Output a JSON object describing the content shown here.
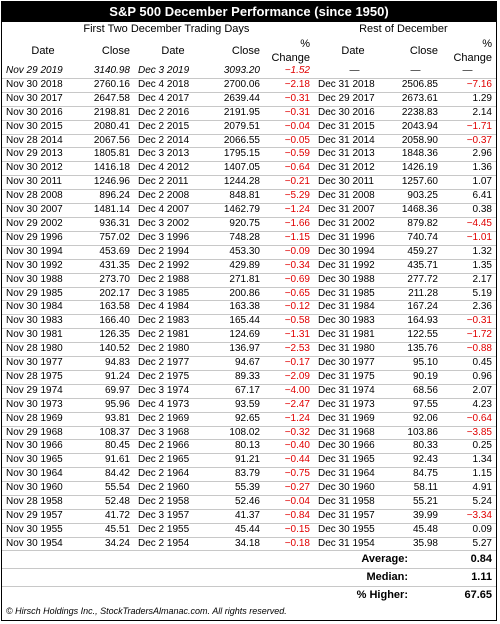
{
  "title": "S&P 500 December Performance (since 1950)",
  "group_left": "First Two December Trading Days",
  "group_right": "Rest of December",
  "columns": [
    "Date",
    "Close",
    "Date",
    "Close",
    "% Change",
    "Date",
    "Close",
    "% Change"
  ],
  "dash": "—",
  "rows": [
    [
      "Nov 29 2019",
      "3140.98",
      "Dec 3 2019",
      "3093.20",
      "−1.52",
      "—",
      "—",
      "—"
    ],
    [
      "Nov 30 2018",
      "2760.16",
      "Dec 4 2018",
      "2700.06",
      "−2.18",
      "Dec 31 2018",
      "2506.85",
      "−7.16"
    ],
    [
      "Nov 30 2017",
      "2647.58",
      "Dec 4 2017",
      "2639.44",
      "−0.31",
      "Dec 29 2017",
      "2673.61",
      "1.29"
    ],
    [
      "Nov 30 2016",
      "2198.81",
      "Dec 2 2016",
      "2191.95",
      "−0.31",
      "Dec 30 2016",
      "2238.83",
      "2.14"
    ],
    [
      "Nov 30 2015",
      "2080.41",
      "Dec 2 2015",
      "2079.51",
      "−0.04",
      "Dec 31 2015",
      "2043.94",
      "−1.71"
    ],
    [
      "Nov 28 2014",
      "2067.56",
      "Dec 2 2014",
      "2066.55",
      "−0.05",
      "Dec 31 2014",
      "2058.90",
      "−0.37"
    ],
    [
      "Nov 29 2013",
      "1805.81",
      "Dec 3 2013",
      "1795.15",
      "−0.59",
      "Dec 31 2013",
      "1848.36",
      "2.96"
    ],
    [
      "Nov 30 2012",
      "1416.18",
      "Dec 4 2012",
      "1407.05",
      "−0.64",
      "Dec 31 2012",
      "1426.19",
      "1.36"
    ],
    [
      "Nov 30 2011",
      "1246.96",
      "Dec 2 2011",
      "1244.28",
      "−0.21",
      "Dec 30 2011",
      "1257.60",
      "1.07"
    ],
    [
      "Nov 28 2008",
      "896.24",
      "Dec 2 2008",
      "848.81",
      "−5.29",
      "Dec 31 2008",
      "903.25",
      "6.41"
    ],
    [
      "Nov 30 2007",
      "1481.14",
      "Dec 4 2007",
      "1462.79",
      "−1.24",
      "Dec 31 2007",
      "1468.36",
      "0.38"
    ],
    [
      "Nov 29 2002",
      "936.31",
      "Dec 3 2002",
      "920.75",
      "−1.66",
      "Dec 31 2002",
      "879.82",
      "−4.45"
    ],
    [
      "Nov 29 1996",
      "757.02",
      "Dec 3 1996",
      "748.28",
      "−1.15",
      "Dec 31 1996",
      "740.74",
      "−1.01"
    ],
    [
      "Nov 30 1994",
      "453.69",
      "Dec 2 1994",
      "453.30",
      "−0.09",
      "Dec 30 1994",
      "459.27",
      "1.32"
    ],
    [
      "Nov 30 1992",
      "431.35",
      "Dec 2 1992",
      "429.89",
      "−0.34",
      "Dec 31 1992",
      "435.71",
      "1.35"
    ],
    [
      "Nov 30 1988",
      "273.70",
      "Dec 2 1988",
      "271.81",
      "−0.69",
      "Dec 30 1988",
      "277.72",
      "2.17"
    ],
    [
      "Nov 29 1985",
      "202.17",
      "Dec 3 1985",
      "200.86",
      "−0.65",
      "Dec 31 1985",
      "211.28",
      "5.19"
    ],
    [
      "Nov 30 1984",
      "163.58",
      "Dec 4 1984",
      "163.38",
      "−0.12",
      "Dec 31 1984",
      "167.24",
      "2.36"
    ],
    [
      "Nov 30 1983",
      "166.40",
      "Dec 2 1983",
      "165.44",
      "−0.58",
      "Dec 30 1983",
      "164.93",
      "−0.31"
    ],
    [
      "Nov 30 1981",
      "126.35",
      "Dec 2 1981",
      "124.69",
      "−1.31",
      "Dec 31 1981",
      "122.55",
      "−1.72"
    ],
    [
      "Nov 28 1980",
      "140.52",
      "Dec 2 1980",
      "136.97",
      "−2.53",
      "Dec 31 1980",
      "135.76",
      "−0.88"
    ],
    [
      "Nov 30 1977",
      "94.83",
      "Dec 2 1977",
      "94.67",
      "−0.17",
      "Dec 30 1977",
      "95.10",
      "0.45"
    ],
    [
      "Nov 28 1975",
      "91.24",
      "Dec 2 1975",
      "89.33",
      "−2.09",
      "Dec 31 1975",
      "90.19",
      "0.96"
    ],
    [
      "Nov 29 1974",
      "69.97",
      "Dec 3 1974",
      "67.17",
      "−4.00",
      "Dec 31 1974",
      "68.56",
      "2.07"
    ],
    [
      "Nov 30 1973",
      "95.96",
      "Dec 4 1973",
      "93.59",
      "−2.47",
      "Dec 31 1973",
      "97.55",
      "4.23"
    ],
    [
      "Nov 28 1969",
      "93.81",
      "Dec 2 1969",
      "92.65",
      "−1.24",
      "Dec 31 1969",
      "92.06",
      "−0.64"
    ],
    [
      "Nov 29 1968",
      "108.37",
      "Dec 3 1968",
      "108.02",
      "−0.32",
      "Dec 31 1968",
      "103.86",
      "−3.85"
    ],
    [
      "Nov 30 1966",
      "80.45",
      "Dec 2 1966",
      "80.13",
      "−0.40",
      "Dec 30 1966",
      "80.33",
      "0.25"
    ],
    [
      "Nov 30 1965",
      "91.61",
      "Dec 2 1965",
      "91.21",
      "−0.44",
      "Dec 31 1965",
      "92.43",
      "1.34"
    ],
    [
      "Nov 30 1964",
      "84.42",
      "Dec 2 1964",
      "83.79",
      "−0.75",
      "Dec 31 1964",
      "84.75",
      "1.15"
    ],
    [
      "Nov 30 1960",
      "55.54",
      "Dec 2 1960",
      "55.39",
      "−0.27",
      "Dec 30 1960",
      "58.11",
      "4.91"
    ],
    [
      "Nov 28 1958",
      "52.48",
      "Dec 2 1958",
      "52.46",
      "−0.04",
      "Dec 31 1958",
      "55.21",
      "5.24"
    ],
    [
      "Nov 29 1957",
      "41.72",
      "Dec 3 1957",
      "41.37",
      "−0.84",
      "Dec 31 1957",
      "39.99",
      "−3.34"
    ],
    [
      "Nov 30 1955",
      "45.51",
      "Dec 2 1955",
      "45.44",
      "−0.15",
      "Dec 30 1955",
      "45.48",
      "0.09"
    ],
    [
      "Nov 30 1954",
      "34.24",
      "Dec 2 1954",
      "34.18",
      "−0.18",
      "Dec 31 1954",
      "35.98",
      "5.27"
    ]
  ],
  "summary": [
    {
      "label": "Average:",
      "value": "0.84"
    },
    {
      "label": "Median:",
      "value": "1.11"
    },
    {
      "label": "% Higher:",
      "value": "67.65"
    }
  ],
  "footer": "© Hirsch Holdings Inc., StockTradersAlmanac.com. All rights reserved.",
  "colors": {
    "negative": "#e00000",
    "title_bg": "#000000",
    "title_fg": "#ffffff"
  }
}
